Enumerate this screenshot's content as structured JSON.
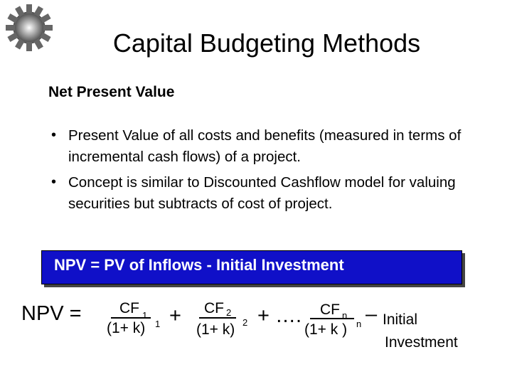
{
  "header": {
    "title": "Capital Budgeting Methods"
  },
  "section": {
    "heading": "Net Present Value",
    "bullets": [
      "Present Value of all costs and benefits (measured in terms of incremental cash flows) of a project.",
      "Concept is similar to Discounted Cashflow model for valuing  securities but subtracts of cost of project."
    ]
  },
  "callout": {
    "text": "NPV = PV of Inflows - Initial Investment"
  },
  "formula": {
    "lhs": "NPV =",
    "terms": [
      {
        "numerator": "CF",
        "numerator_sub": "1",
        "denominator": "(1+ k)",
        "denominator_sup": "1"
      },
      {
        "numerator": "CF",
        "numerator_sub": "2",
        "denominator": "(1+ k)",
        "denominator_sup": "2"
      },
      {
        "numerator": "CF",
        "numerator_sub": "n",
        "denominator": "(1+ k )",
        "denominator_sup": "n"
      }
    ],
    "operators": [
      "+",
      "+ ….",
      "–"
    ],
    "final": [
      "Initial",
      "Investment"
    ]
  }
}
